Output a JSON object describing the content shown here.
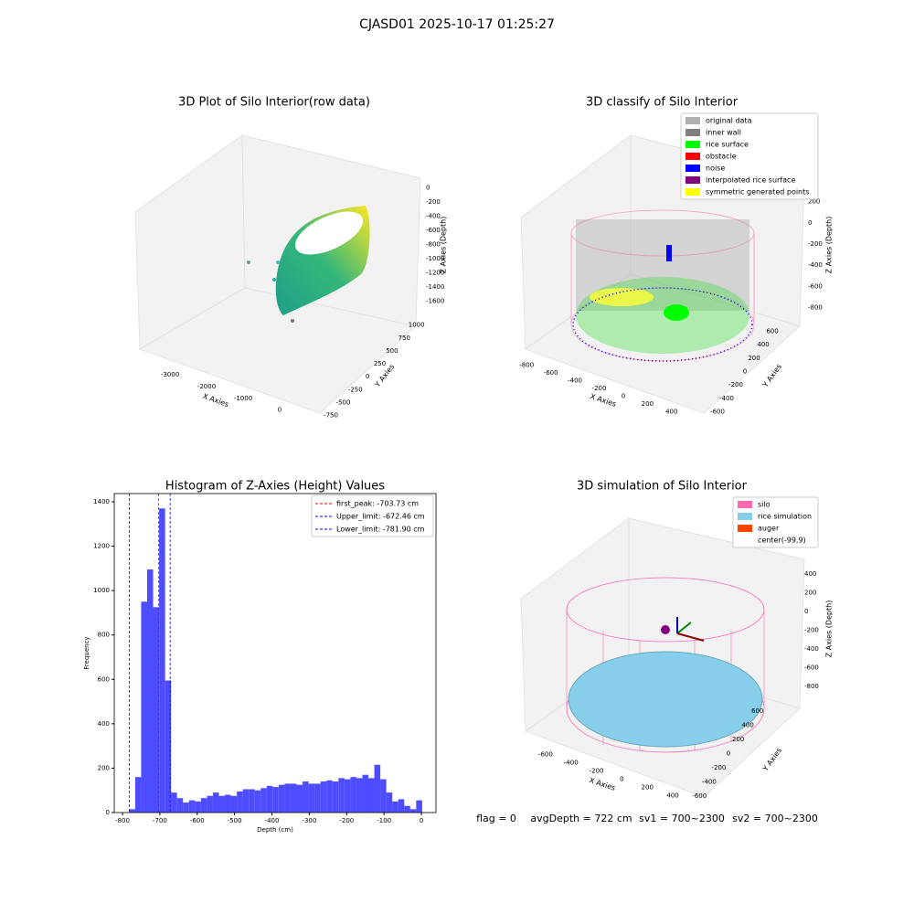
{
  "title": "CJASD01 2025-10-17 01:25:27",
  "footer": [
    "flag = 0",
    "avgDepth = 722 cm",
    "sv1 = 700~2300",
    "sv2 = 700~2300"
  ],
  "chart_data": [
    {
      "type": "scatter3d",
      "title": "3D Plot of Silo Interior(row data)",
      "xlabel": "X Axies",
      "ylabel": "Y Axies",
      "zlabel": "Z Axies (Depth)",
      "xlim": [
        -3800,
        500
      ],
      "xticks": [
        -3000,
        -2000,
        -1000,
        0
      ],
      "ylim": [
        -900,
        1100
      ],
      "yticks": [
        -750,
        -500,
        -250,
        0,
        250,
        500,
        750,
        1000
      ],
      "zlim": [
        -1800,
        100
      ],
      "zticks": [
        0,
        -200,
        -400,
        -600,
        -800,
        -1000,
        -1200,
        -1400,
        -1600
      ]
    },
    {
      "type": "scatter3d",
      "title": "3D classify of Silo Interior",
      "xlabel": "X Axies",
      "ylabel": "Y Axies",
      "zlabel": "Z Axies (Depth)",
      "xlim": [
        -900,
        500
      ],
      "xticks": [
        -800,
        -600,
        -400,
        -200,
        0,
        200,
        400
      ],
      "ylim": [
        -700,
        700
      ],
      "yticks": [
        -600,
        -400,
        -200,
        0,
        200,
        400,
        600
      ],
      "zlim": [
        -900,
        300
      ],
      "zticks": [
        200,
        0,
        -200,
        -400,
        -600,
        -800
      ],
      "legend": [
        {
          "name": "original data",
          "color": "#b0b0b0"
        },
        {
          "name": "inner wall",
          "color": "#808080"
        },
        {
          "name": "rice surface",
          "color": "#00ff00"
        },
        {
          "name": "obstacle",
          "color": "#ff0000"
        },
        {
          "name": "noise",
          "color": "#0000ff"
        },
        {
          "name": "interpolated rice surface",
          "color": "#800080"
        },
        {
          "name": "symmetric generated points",
          "color": "#ffff00"
        }
      ]
    },
    {
      "type": "histogram",
      "title": "Histogram of Z-Axies (Height) Values",
      "xlabel": "Depth (cm)",
      "ylabel": "Frequency",
      "color": "#4d4dff",
      "bins": [
        -782,
        -766,
        -750,
        -734,
        -718,
        -702,
        -686,
        -670,
        -654,
        -638,
        -622,
        -606,
        -590,
        -574,
        -558,
        -542,
        -526,
        -510,
        -494,
        -478,
        -462,
        -446,
        -430,
        -414,
        -398,
        -382,
        -366,
        -350,
        -334,
        -318,
        -302,
        -286,
        -270,
        -254,
        -238,
        -222,
        -206,
        -190,
        -174,
        -158,
        -142,
        -126,
        -110,
        -94,
        -78,
        -62,
        -46,
        -30,
        -14,
        2
      ],
      "values": [
        15,
        160,
        950,
        1095,
        925,
        1370,
        595,
        90,
        65,
        45,
        55,
        50,
        65,
        75,
        90,
        75,
        80,
        75,
        95,
        105,
        105,
        100,
        110,
        120,
        115,
        125,
        130,
        130,
        125,
        140,
        130,
        130,
        140,
        145,
        140,
        155,
        150,
        160,
        155,
        170,
        155,
        215,
        150,
        90,
        50,
        60,
        30,
        15,
        55
      ],
      "xlim": [
        -822,
        39
      ],
      "xticks": [
        -800,
        -700,
        -600,
        -500,
        -400,
        -300,
        -200,
        -100,
        0
      ],
      "ylim": [
        0,
        1437
      ],
      "yticks": [
        0,
        200,
        400,
        600,
        800,
        1000,
        1200,
        1400
      ],
      "vlines": [
        {
          "name": "first_peak: -703.73 cm",
          "value": -703.73,
          "color": "#ff0000"
        },
        {
          "name": "Upper_limit: -672.46 cm",
          "value": -672.46,
          "color": "#0000ff"
        },
        {
          "name": "Lower_limit: -781.90 cm",
          "value": -781.9,
          "color": "#0000ff"
        }
      ]
    },
    {
      "type": "scatter3d",
      "title": "3D simulation of Silo Interior",
      "xlabel": "X Axies",
      "ylabel": "Y Axies",
      "zlabel": "Z Axies (Depth)",
      "xlim": [
        -750,
        500
      ],
      "xticks": [
        -600,
        -400,
        -200,
        0,
        200,
        400
      ],
      "ylim": [
        -700,
        700
      ],
      "yticks": [
        -600,
        -400,
        -200,
        0,
        200,
        400,
        600
      ],
      "zlim": [
        -900,
        500
      ],
      "zticks": [
        400,
        200,
        0,
        -200,
        -400,
        -600,
        -800
      ],
      "legend": [
        {
          "name": "silo",
          "color": "#ff69b4"
        },
        {
          "name": "rice simulation",
          "color": "#87ceeb"
        },
        {
          "name": "auger",
          "color": "#ff4500"
        },
        {
          "name": "center(-99,9)"
        }
      ]
    }
  ]
}
